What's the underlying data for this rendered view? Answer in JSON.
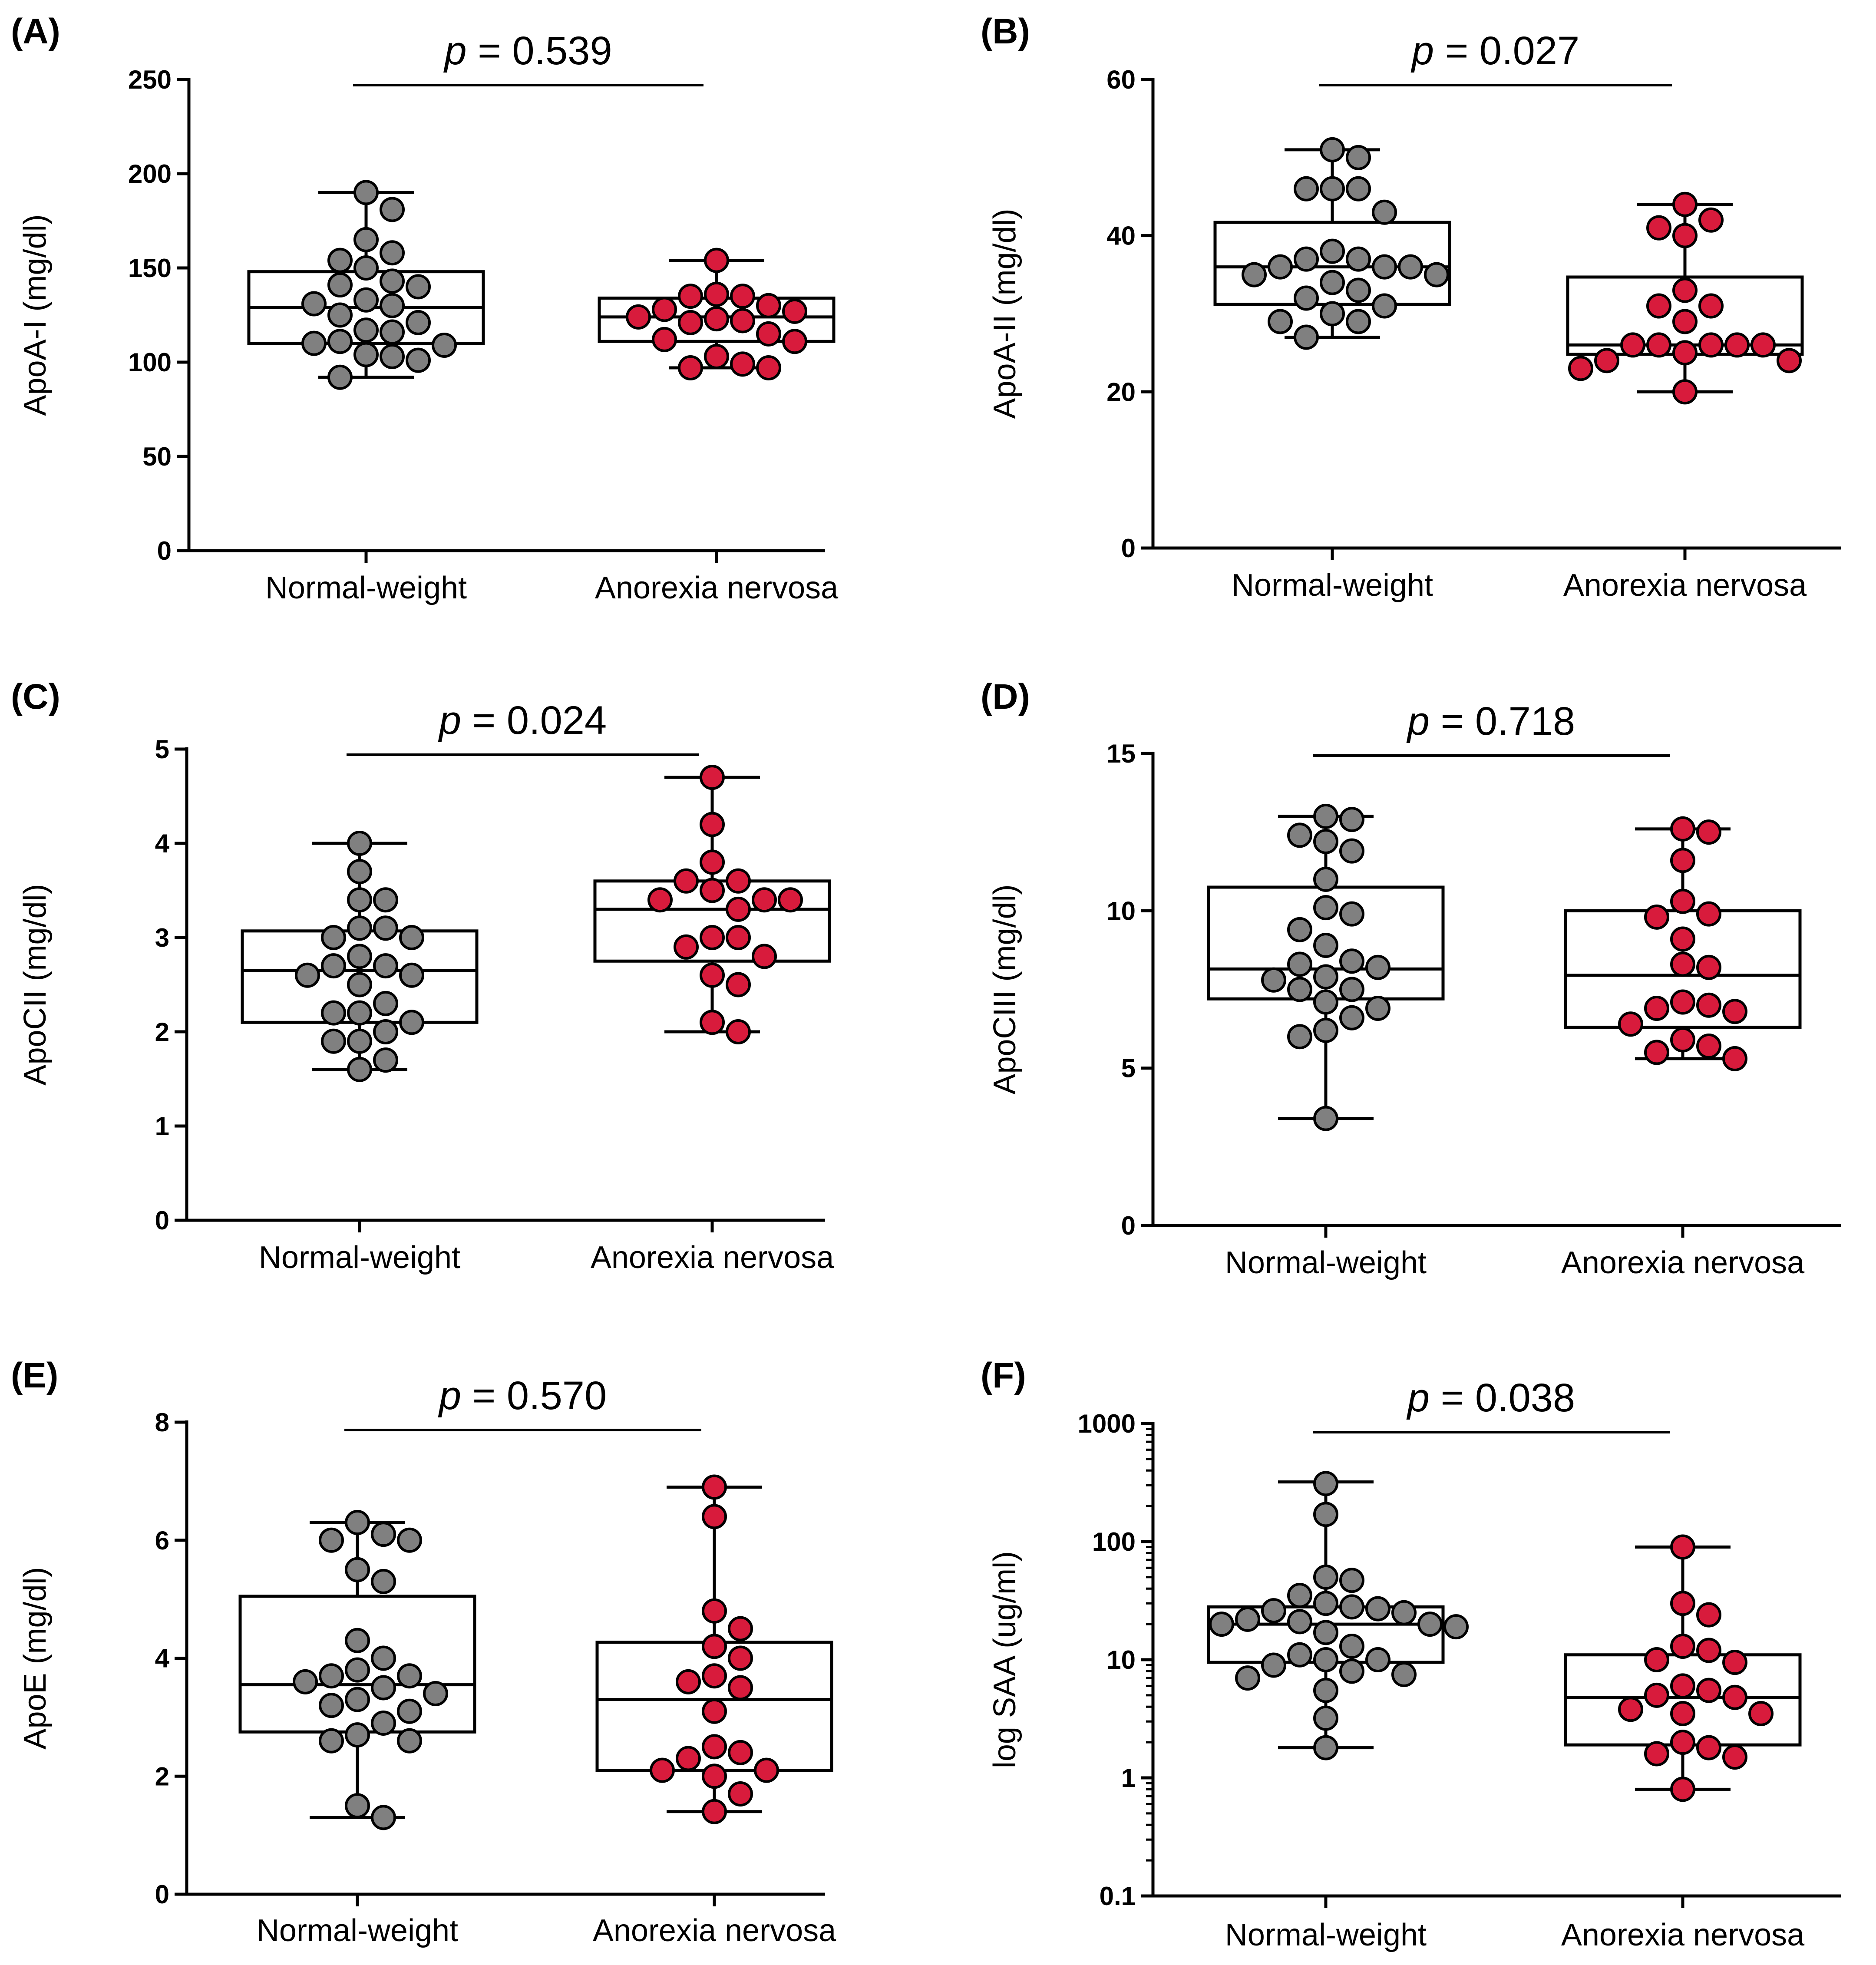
{
  "colors": {
    "normal": "#808080",
    "anorexia": "#d81b3c",
    "stroke": "#000000"
  },
  "chart_data": [
    {
      "panel": "(A)",
      "type": "box",
      "ylabel": "ApoA-I (mg/dl)",
      "scale": "linear",
      "ylim": [
        0,
        250
      ],
      "yticks": [
        0,
        50,
        100,
        150,
        200,
        250
      ],
      "ytick_labels": [
        "0",
        "50",
        "100",
        "150",
        "200",
        "250"
      ],
      "categories": [
        "Normal-weight",
        "Anorexia nervosa"
      ],
      "p_prefix": "p",
      "p_value": "= 0.539",
      "groups": [
        {
          "name": "Normal-weight",
          "color": "normal",
          "whisker_min": 92,
          "q1": 110,
          "median": 129,
          "q3": 148,
          "whisker_max": 190,
          "points": [
            190,
            181,
            165,
            158,
            154,
            150,
            143,
            141,
            140,
            133,
            131,
            130,
            125,
            121,
            117,
            116,
            111,
            110,
            109,
            104,
            103,
            101,
            92
          ]
        },
        {
          "name": "Anorexia nervosa",
          "color": "anorexia",
          "whisker_min": 97,
          "q1": 111,
          "median": 124,
          "q3": 134,
          "whisker_max": 154,
          "points": [
            154,
            136,
            135,
            135,
            130,
            128,
            127,
            124,
            123,
            122,
            121,
            115,
            112,
            111,
            103,
            99,
            97,
            97
          ]
        }
      ]
    },
    {
      "panel": "(B)",
      "type": "box",
      "ylabel": "ApoA-II (mg/dl)",
      "scale": "linear",
      "ylim": [
        0,
        60
      ],
      "yticks": [
        0,
        20,
        40,
        60
      ],
      "ytick_labels": [
        "0",
        "20",
        "40",
        "60"
      ],
      "categories": [
        "Normal-weight",
        "Anorexia nervosa"
      ],
      "p_prefix": "p",
      "p_value": "= 0.027",
      "groups": [
        {
          "name": "Normal-weight",
          "color": "normal",
          "whisker_min": 27,
          "q1": 31.2,
          "median": 36,
          "q3": 41.7,
          "whisker_max": 51,
          "points": [
            51,
            50,
            46,
            46,
            46,
            43,
            38,
            37,
            37,
            36,
            36,
            36,
            35,
            35,
            34,
            33,
            32,
            31,
            30,
            29,
            29,
            27
          ]
        },
        {
          "name": "Anorexia nervosa",
          "color": "anorexia",
          "whisker_min": 20,
          "q1": 24.8,
          "median": 26,
          "q3": 34.7,
          "whisker_max": 44,
          "points": [
            44,
            42,
            41,
            40,
            33,
            31,
            31,
            29,
            26,
            26,
            26,
            26,
            26,
            25,
            24,
            24,
            23,
            20
          ]
        }
      ]
    },
    {
      "panel": "(C)",
      "type": "box",
      "ylabel": "ApoCII (mg/dl)",
      "scale": "linear",
      "ylim": [
        0,
        5
      ],
      "yticks": [
        0,
        1,
        2,
        3,
        4,
        5
      ],
      "ytick_labels": [
        "0",
        "1",
        "2",
        "3",
        "4",
        "5"
      ],
      "categories": [
        "Normal-weight",
        "Anorexia nervosa"
      ],
      "p_prefix": "p",
      "p_value": "= 0.024",
      "groups": [
        {
          "name": "Normal-weight",
          "color": "normal",
          "whisker_min": 1.6,
          "q1": 2.1,
          "median": 2.65,
          "q3": 3.07,
          "whisker_max": 4.0,
          "points": [
            4.0,
            3.7,
            3.4,
            3.4,
            3.1,
            3.1,
            3.0,
            3.0,
            2.8,
            2.7,
            2.7,
            2.6,
            2.6,
            2.5,
            2.3,
            2.2,
            2.2,
            2.1,
            2.0,
            1.9,
            1.9,
            1.7,
            1.6
          ]
        },
        {
          "name": "Anorexia nervosa",
          "color": "anorexia",
          "whisker_min": 2.0,
          "q1": 2.75,
          "median": 3.3,
          "q3": 3.6,
          "whisker_max": 4.7,
          "points": [
            4.7,
            4.2,
            3.8,
            3.6,
            3.6,
            3.5,
            3.4,
            3.4,
            3.4,
            3.3,
            3.0,
            3.0,
            2.9,
            2.8,
            2.6,
            2.5,
            2.1,
            2.0
          ]
        }
      ]
    },
    {
      "panel": "(D)",
      "type": "box",
      "ylabel": "ApoCIII (mg/dl)",
      "scale": "linear",
      "ylim": [
        0,
        15
      ],
      "yticks": [
        0,
        5,
        10,
        15
      ],
      "ytick_labels": [
        "0",
        "5",
        "10",
        "15"
      ],
      "categories": [
        "Normal-weight",
        "Anorexia nervosa"
      ],
      "p_prefix": "p",
      "p_value": "= 0.718",
      "groups": [
        {
          "name": "Normal-weight",
          "color": "normal",
          "whisker_min": 3.4,
          "q1": 7.2,
          "median": 8.15,
          "q3": 10.75,
          "whisker_max": 13.0,
          "points": [
            13.0,
            12.9,
            12.4,
            12.2,
            11.9,
            11.0,
            10.1,
            9.9,
            9.4,
            8.9,
            8.4,
            8.3,
            8.2,
            7.9,
            7.8,
            7.5,
            7.5,
            7.1,
            6.9,
            6.6,
            6.2,
            6.0,
            3.4
          ]
        },
        {
          "name": "Anorexia nervosa",
          "color": "anorexia",
          "whisker_min": 5.3,
          "q1": 6.3,
          "median": 7.95,
          "q3": 10.0,
          "whisker_max": 12.6,
          "points": [
            12.6,
            12.5,
            11.6,
            10.3,
            9.9,
            9.8,
            9.1,
            8.3,
            8.2,
            7.1,
            7.0,
            6.9,
            6.8,
            6.4,
            5.9,
            5.7,
            5.5,
            5.3
          ]
        }
      ]
    },
    {
      "panel": "(E)",
      "type": "box",
      "ylabel": "ApoE (mg/dl)",
      "scale": "linear",
      "ylim": [
        0,
        8
      ],
      "yticks": [
        0,
        2,
        4,
        6,
        8
      ],
      "ytick_labels": [
        "0",
        "2",
        "4",
        "6",
        "8"
      ],
      "categories": [
        "Normal-weight",
        "Anorexia nervosa"
      ],
      "p_prefix": "p",
      "p_value": "= 0.570",
      "groups": [
        {
          "name": "Normal-weight",
          "color": "normal",
          "whisker_min": 1.3,
          "q1": 2.75,
          "median": 3.55,
          "q3": 5.05,
          "whisker_max": 6.3,
          "points": [
            6.3,
            6.1,
            6.0,
            6.0,
            5.5,
            5.3,
            4.3,
            4.0,
            3.8,
            3.7,
            3.7,
            3.6,
            3.5,
            3.4,
            3.3,
            3.2,
            3.1,
            2.9,
            2.7,
            2.6,
            2.6,
            1.5,
            1.3
          ]
        },
        {
          "name": "Anorexia nervosa",
          "color": "anorexia",
          "whisker_min": 1.4,
          "q1": 2.1,
          "median": 3.3,
          "q3": 4.27,
          "whisker_max": 6.9,
          "points": [
            6.9,
            6.4,
            4.8,
            4.5,
            4.2,
            4.0,
            3.7,
            3.6,
            3.5,
            3.1,
            2.5,
            2.4,
            2.3,
            2.1,
            2.1,
            2.0,
            1.7,
            1.4
          ]
        }
      ]
    },
    {
      "panel": "(F)",
      "type": "box",
      "ylabel": "log SAA (ug/ml)",
      "scale": "log",
      "ylim": [
        0.1,
        1000
      ],
      "yticks": [
        0.1,
        1,
        10,
        100,
        1000
      ],
      "ytick_labels": [
        "0.1",
        "1",
        "10",
        "100",
        "1000"
      ],
      "categories": [
        "Normal-weight",
        "Anorexia nervosa"
      ],
      "p_prefix": "p",
      "p_value": "= 0.038",
      "groups": [
        {
          "name": "Normal-weight",
          "color": "normal",
          "whisker_min": 1.8,
          "q1": 9.5,
          "median": 20,
          "q3": 28,
          "whisker_max": 320,
          "points": [
            310,
            170,
            50,
            47,
            35,
            30,
            28,
            27,
            26,
            25,
            22,
            21,
            20,
            20,
            19,
            17,
            13,
            11,
            10,
            10,
            9,
            8,
            7.5,
            7,
            5.5,
            3.2,
            1.8
          ]
        },
        {
          "name": "Anorexia nervosa",
          "color": "anorexia",
          "whisker_min": 0.8,
          "q1": 1.9,
          "median": 4.8,
          "q3": 11,
          "whisker_max": 90,
          "points": [
            90,
            30,
            24,
            13,
            12,
            10,
            9.5,
            6,
            5.5,
            5,
            4.8,
            3.8,
            3.5,
            3.5,
            2,
            1.8,
            1.6,
            1.5,
            0.8
          ]
        }
      ]
    }
  ]
}
